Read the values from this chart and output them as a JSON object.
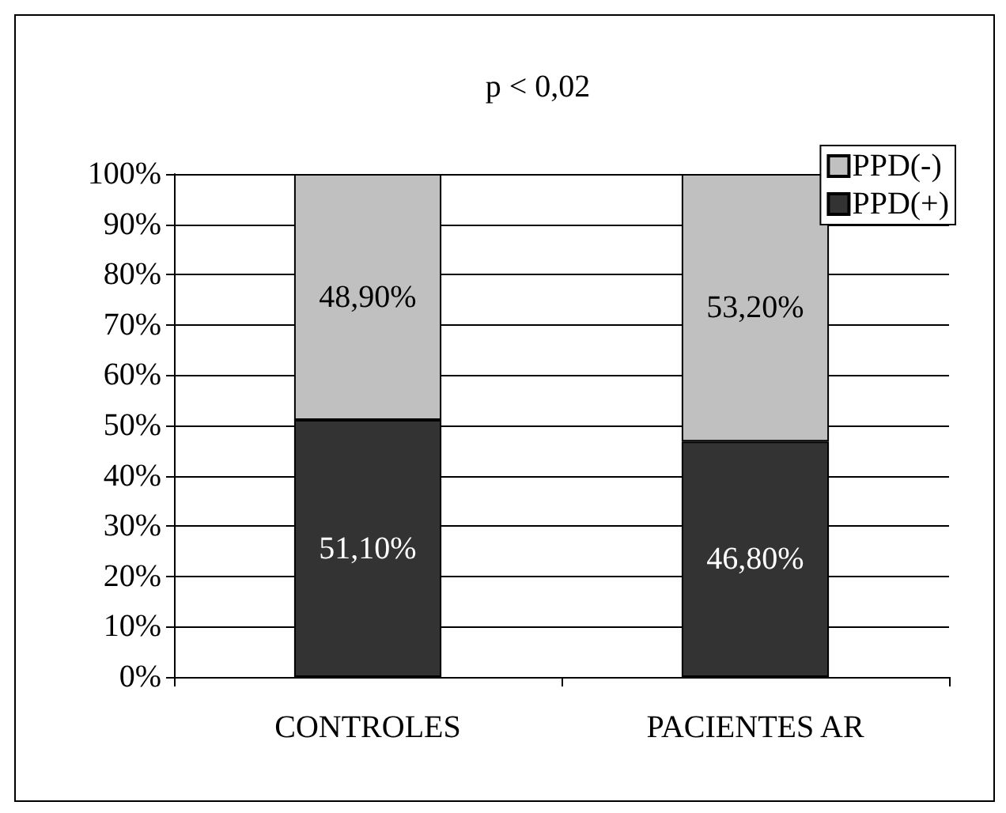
{
  "chart_data": {
    "type": "bar",
    "title": "p < 0,02",
    "stacked": true,
    "categories": [
      "CONTROLES",
      "PACIENTES AR"
    ],
    "series": [
      {
        "name": "PPD(+)",
        "color": "#333333",
        "values": [
          51.1,
          46.8
        ],
        "value_labels": [
          "51,10%",
          "46,80%"
        ]
      },
      {
        "name": "PPD(-)",
        "color": "#c0c0c0",
        "values": [
          48.9,
          53.2
        ],
        "value_labels": [
          "48,90%",
          "53,20%"
        ]
      }
    ],
    "ylim": [
      0,
      100
    ],
    "yticks": [
      {
        "value": 0,
        "label": "0%"
      },
      {
        "value": 10,
        "label": "10%"
      },
      {
        "value": 20,
        "label": "20%"
      },
      {
        "value": 30,
        "label": "30%"
      },
      {
        "value": 40,
        "label": "40%"
      },
      {
        "value": 50,
        "label": "50%"
      },
      {
        "value": 60,
        "label": "60%"
      },
      {
        "value": 70,
        "label": "70%"
      },
      {
        "value": 80,
        "label": "80%"
      },
      {
        "value": 90,
        "label": "90%"
      },
      {
        "value": 100,
        "label": "100%"
      }
    ],
    "grid": "y",
    "legend": "top right"
  }
}
